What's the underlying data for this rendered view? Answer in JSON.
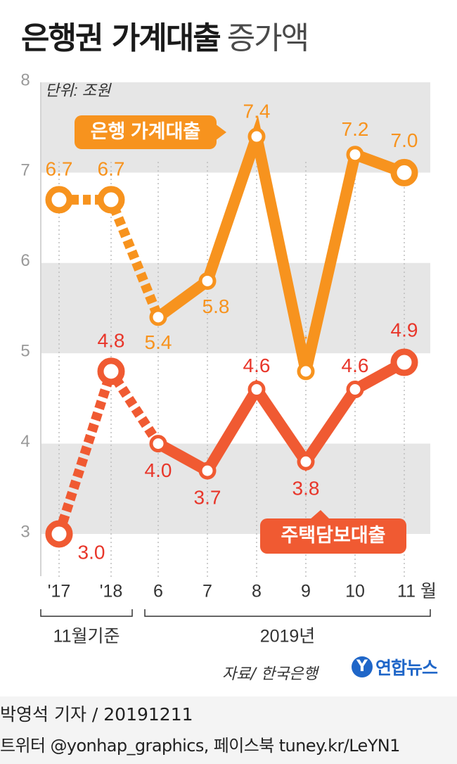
{
  "title": {
    "bold": "은행권 가계대출",
    "light": "증가액"
  },
  "unit_label": "단위: 조원",
  "source": "자료/ 한국은행",
  "logo": {
    "icon": "Y",
    "text": "연합뉴스"
  },
  "byline": "박영석 기자 /  20191211",
  "byline2": "트위터 @yonhap_graphics, 페이스북 tuney.kr/LeYN1",
  "group_labels": {
    "left": "11월기준",
    "right": "2019년"
  },
  "colors": {
    "household": "#f7931e",
    "mortgage": "#f05a32",
    "mortgage_label": "#e8362a",
    "band": "#e6e6e6",
    "axis_text": "#999999"
  },
  "chart_data": {
    "type": "line",
    "title": "은행권 가계대출 증가액",
    "unit": "단위: 조원",
    "categories": [
      "'17",
      "'18",
      "6",
      "7",
      "8",
      "9",
      "10",
      "11 월"
    ],
    "ylim": [
      3,
      8
    ],
    "yticks": [
      3,
      4,
      5,
      6,
      7,
      8
    ],
    "series": [
      {
        "name": "은행 가계대출",
        "values": [
          6.7,
          6.7,
          5.4,
          5.8,
          7.4,
          4.8,
          7.2,
          7.0
        ],
        "labels": [
          "6.7",
          "6.7",
          "5.4",
          "5.8",
          "7.4",
          "4.8",
          "7.2",
          "7.0"
        ]
      },
      {
        "name": "주택담보대출",
        "values": [
          3.0,
          4.8,
          4.0,
          3.7,
          4.6,
          3.8,
          4.6,
          4.9
        ],
        "labels": [
          "3.0",
          "4.8",
          "4.0",
          "3.7",
          "4.6",
          "3.8",
          "4.6",
          "4.9"
        ]
      }
    ]
  }
}
